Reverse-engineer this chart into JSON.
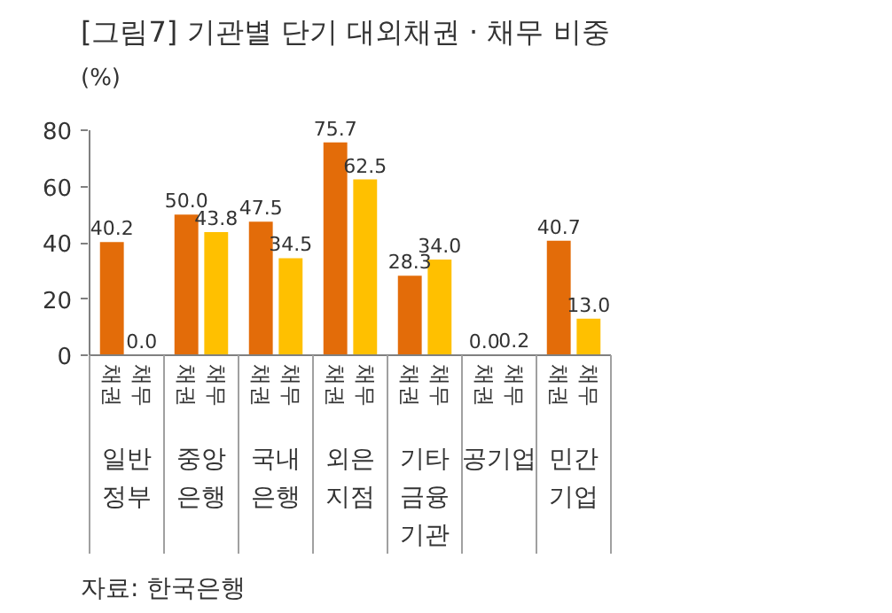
{
  "chart_data": {
    "type": "bar",
    "title": "[그림7] 기관별 단기 대외채권 · 채무 비중",
    "ylabel": "(%)",
    "categories": [
      "일반\n정부",
      "중앙\n은행",
      "국내\n은행",
      "외은\n지점",
      "기타\n금융\n기관",
      "공기업",
      "민간\n기업"
    ],
    "series": [
      {
        "name": "채권",
        "color": "#e36c09",
        "values": [
          40.2,
          50.0,
          47.5,
          75.7,
          28.3,
          0.0,
          40.7
        ],
        "value_labels": [
          "40.2",
          "50.0",
          "47.5",
          "75.7",
          "28.3",
          "0.0",
          "40.7"
        ]
      },
      {
        "name": "채무",
        "color": "#ffc000",
        "values": [
          0.0,
          43.8,
          34.5,
          62.5,
          34.0,
          0.2,
          13.0
        ],
        "value_labels": [
          "0.0",
          "43.8",
          "34.5",
          "62.5",
          "34.0",
          "0.2",
          "13.0"
        ]
      }
    ],
    "ylim": [
      0,
      80
    ],
    "yticks": [
      0,
      20,
      40,
      60,
      80
    ],
    "grid": false,
    "annotations": [
      "자료: 한국은행"
    ]
  }
}
